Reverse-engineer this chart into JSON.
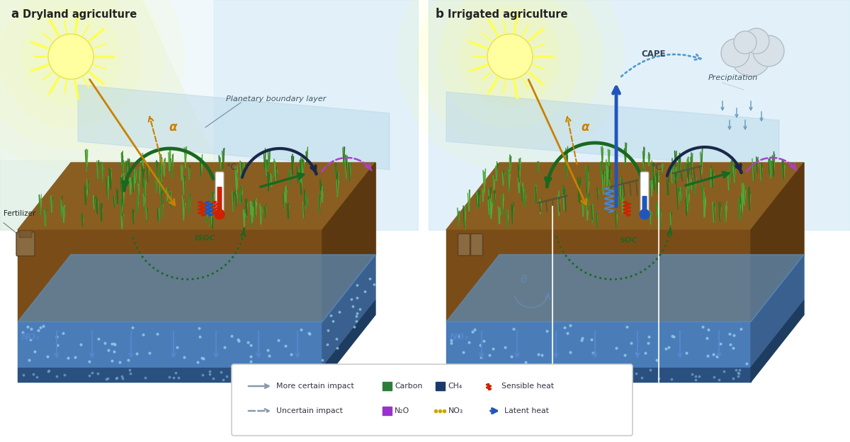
{
  "title_a": "Dryland agriculture",
  "title_b": "Irrigated agriculture",
  "panel_a_label": "a",
  "panel_b_label": "b",
  "bg_color": "#ffffff",
  "sky_blue": "#b8d8eb",
  "sky_light": "#daeef8",
  "sun_color": "#ffffa0",
  "sun_core": "#ffff60",
  "soil_dark_brown": "#7a4d1a",
  "soil_mid_brown": "#5c3610",
  "soil_side_brown": "#4a2c0a",
  "water_blue": "#4a7cb5",
  "water_top": "#6a9ec8",
  "water_side": "#3a6090",
  "deep_water": "#2a5080",
  "deep_top": "#3a6598",
  "grass_green": "#3a8a28",
  "grass_yellow": "#c8b830",
  "grass_light": "#5aaa40",
  "green_arrow": "#1a6820",
  "dark_arrow": "#1a2848",
  "purple_arrow": "#aa40cc",
  "orange_arrow": "#c88000",
  "blue_arrow": "#2255bb",
  "no3_blue": "#3a6aaa",
  "pbl_color": "#c0d8ea",
  "fertilizer_color": "#8a6a40",
  "legend_border": "#bbbbbb",
  "text_dark": "#222222",
  "text_gray": "#555555"
}
